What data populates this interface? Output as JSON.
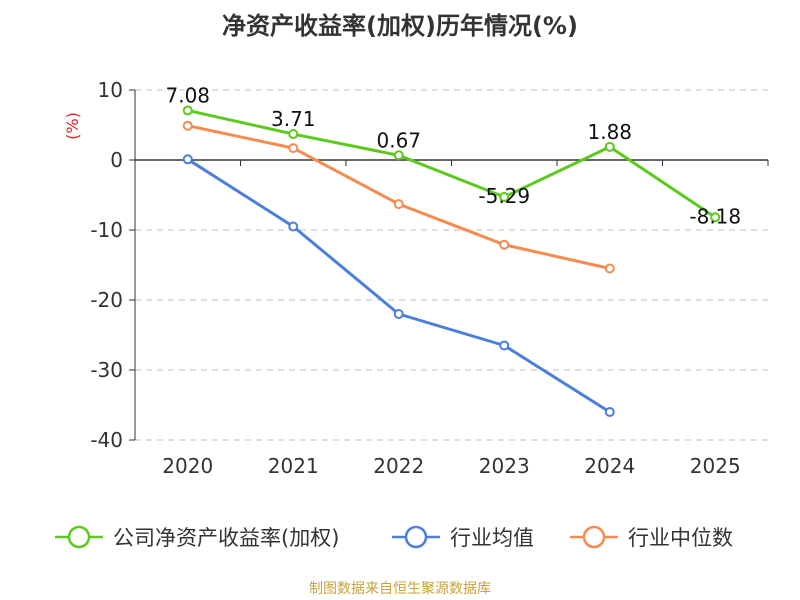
{
  "page": {
    "title": "净资产收益率(加权)历年情况(%)",
    "source": "制图数据来自恒生聚源数据库"
  },
  "chart_data": {
    "type": "line",
    "title": "净资产收益率(加权)历年情况(%)",
    "ylabel": "(%)",
    "xlabel": "",
    "categories": [
      "2020",
      "2021",
      "2022",
      "2023",
      "2024",
      "2025"
    ],
    "ylim": [
      -40,
      10
    ],
    "yticks": [
      10,
      0,
      -10,
      -20,
      -30,
      -40
    ],
    "grid": true,
    "legend_position": "bottom",
    "series": [
      {
        "name": "公司净资产收益率(加权)",
        "color": "#5cc91e",
        "values": [
          7.08,
          3.71,
          0.67,
          -5.29,
          1.88,
          -8.18
        ],
        "labels": [
          "7.08",
          "3.71",
          "0.67",
          "-5.29",
          "1.88",
          "-8.18"
        ]
      },
      {
        "name": "行业均值",
        "color": "#4a7fdc",
        "values": [
          0.1,
          -9.5,
          -22.0,
          -26.5,
          -36.0,
          null
        ]
      },
      {
        "name": "行业中位数",
        "color": "#f58b4c",
        "values": [
          4.9,
          1.7,
          -6.3,
          -12.1,
          -15.5,
          null
        ]
      }
    ]
  }
}
